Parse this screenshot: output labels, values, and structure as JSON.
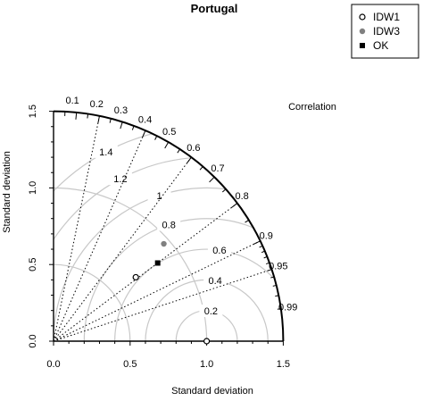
{
  "chart_data": {
    "type": "scatter",
    "subtype": "taylor-diagram",
    "title": "Portugal",
    "xlabel": "Standard deviation",
    "ylabel": "Standard deviation",
    "correlation_label": "Correlation",
    "xlim": [
      0,
      1.5
    ],
    "ylim": [
      0,
      1.5
    ],
    "x_ticks": [
      "0.0",
      "0.5",
      "1.0",
      "1.5"
    ],
    "y_ticks": [
      "0.0",
      "0.5",
      "1.0",
      "1.5"
    ],
    "reference_std": 1.0,
    "correlation_ticks": [
      "0.1",
      "0.2",
      "0.3",
      "0.4",
      "0.5",
      "0.6",
      "0.7",
      "0.8",
      "0.9",
      "0.95",
      "0.99"
    ],
    "correlation_dotted_lines": [
      0.2,
      0.4,
      0.6,
      0.8,
      0.9,
      0.95
    ],
    "std_arcs": [
      0.5,
      1.0
    ],
    "rms_arcs": [
      "0.2",
      "0.4",
      "0.6",
      "0.8",
      "1",
      "1.2",
      "1.4"
    ],
    "legend_position": "top-right",
    "series": [
      {
        "name": "IDW1",
        "marker": "open-circle",
        "color": "#000000",
        "points": [
          {
            "std": 0.68,
            "corr": 0.79
          }
        ]
      },
      {
        "name": "IDW3",
        "marker": "filled-circle",
        "color": "#808080",
        "points": [
          {
            "std": 0.96,
            "corr": 0.75
          }
        ]
      },
      {
        "name": "OK",
        "marker": "filled-square",
        "color": "#000000",
        "points": [
          {
            "std": 0.85,
            "corr": 0.8
          }
        ]
      }
    ],
    "reference_point": {
      "std": 1.0,
      "corr": 1.0,
      "marker": "open-circle"
    }
  }
}
